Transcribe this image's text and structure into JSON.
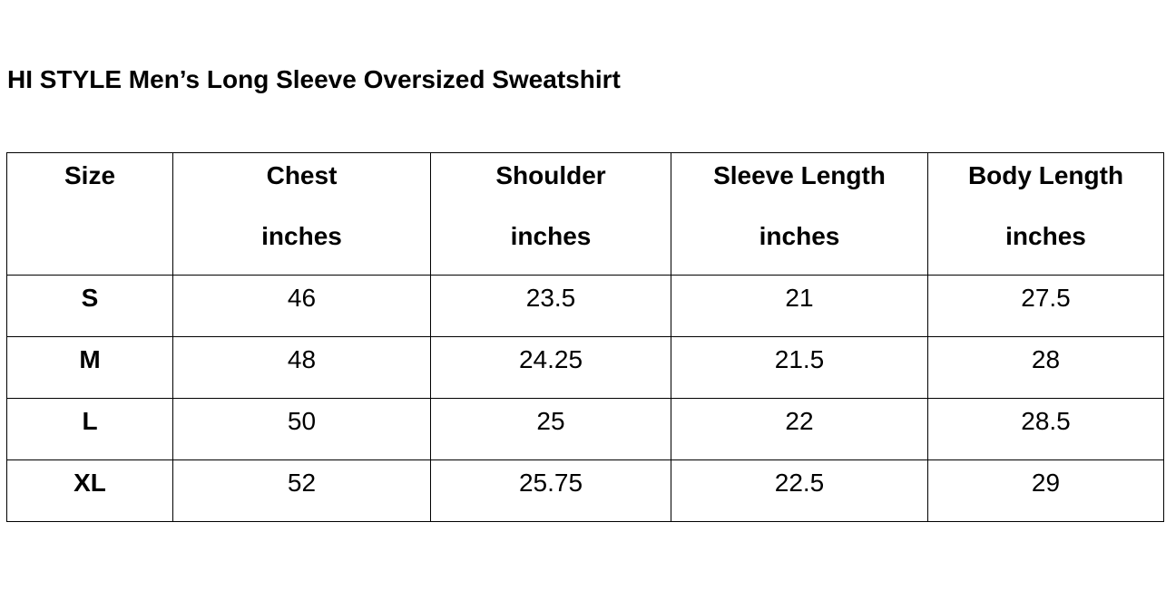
{
  "title": "HI STYLE Men’s Long Sleeve Oversized Sweatshirt",
  "table": {
    "header": [
      {
        "name": "Size"
      },
      {
        "name": "Chest",
        "unit": "inches"
      },
      {
        "name": "Shoulder",
        "unit": "inches"
      },
      {
        "name": "Sleeve Length",
        "unit": "inches"
      },
      {
        "name": "Body Length",
        "unit": "inches"
      }
    ],
    "rows": [
      [
        "S",
        46,
        23.5,
        21,
        27.5
      ],
      [
        "M",
        48,
        24.25,
        21.5,
        28
      ],
      [
        "L",
        50,
        25,
        22,
        28.5
      ],
      [
        "XL",
        52,
        25.75,
        22.5,
        29
      ]
    ]
  }
}
